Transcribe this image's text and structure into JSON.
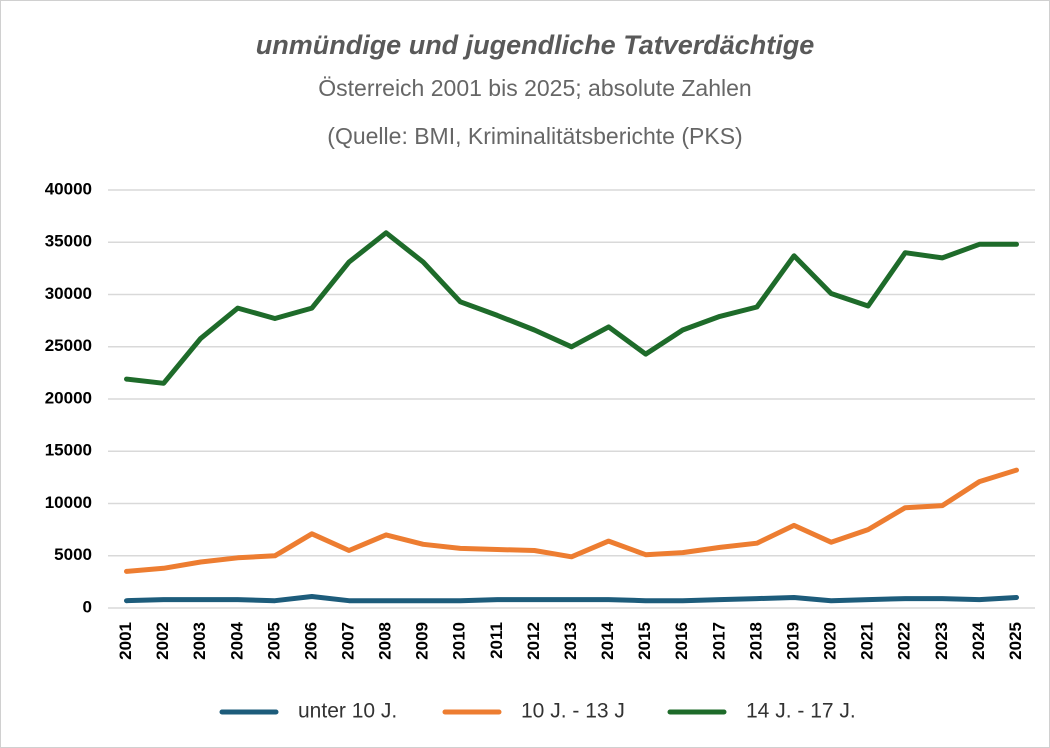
{
  "chart_data": {
    "type": "line",
    "title": "unmündige und jugendliche Tatverdächtige",
    "subtitle": "Österreich 2001 bis 2025; absolute Zahlen",
    "source": "(Quelle: BMI, Kriminalitätsberichte (PKS)",
    "categories": [
      "2001",
      "2002",
      "2003",
      "2004",
      "2005",
      "2006",
      "2007",
      "2008",
      "2009",
      "2010",
      "2011",
      "2012",
      "2013",
      "2014",
      "2015",
      "2016",
      "2017",
      "2018",
      "2019",
      "2020",
      "2021",
      "2022",
      "2023",
      "2024",
      "2025"
    ],
    "series": [
      {
        "name": "unter 10 J.",
        "color": "#1d5c7b",
        "values": [
          700,
          800,
          800,
          800,
          700,
          1100,
          700,
          700,
          700,
          700,
          800,
          800,
          800,
          800,
          700,
          700,
          800,
          900,
          1000,
          700,
          800,
          900,
          900,
          800,
          1000
        ]
      },
      {
        "name": "10 J. - 13 J",
        "color": "#ed7d31",
        "values": [
          3500,
          3800,
          4400,
          4800,
          5000,
          7100,
          5500,
          7000,
          6100,
          5700,
          5600,
          5500,
          4900,
          6400,
          5100,
          5300,
          5800,
          6200,
          7900,
          6300,
          7500,
          9600,
          9800,
          12100,
          13200
        ]
      },
      {
        "name": "14 J. - 17 J.",
        "color": "#1e6b2a",
        "values": [
          21900,
          21500,
          25800,
          28700,
          27700,
          28700,
          33100,
          35900,
          33100,
          29300,
          28000,
          26600,
          25000,
          26900,
          24300,
          26600,
          27900,
          28800,
          33700,
          30100,
          28900,
          34000,
          33500,
          34800,
          34800
        ]
      }
    ],
    "ylim": [
      0,
      40000
    ],
    "yticks": [
      0,
      5000,
      10000,
      15000,
      20000,
      25000,
      30000,
      35000,
      40000
    ],
    "grid": true,
    "legend": "bottom"
  }
}
